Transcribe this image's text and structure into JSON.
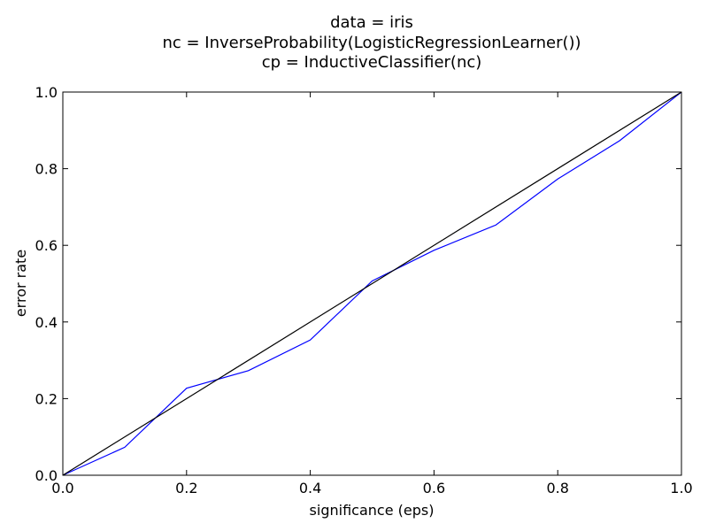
{
  "chart_data": {
    "type": "line",
    "title_lines": [
      "data = iris",
      "nc = InverseProbability(LogisticRegressionLearner())",
      "cp = InductiveClassifier(nc)"
    ],
    "xlabel": "significance (eps)",
    "ylabel": "error rate",
    "xlim": [
      0.0,
      1.0
    ],
    "ylim": [
      0.0,
      1.0
    ],
    "x_ticks": [
      0.0,
      0.2,
      0.4,
      0.6,
      0.8,
      1.0
    ],
    "x_tick_labels": [
      "0.0",
      "0.2",
      "0.4",
      "0.6",
      "0.8",
      "1.0"
    ],
    "y_ticks": [
      0.0,
      0.2,
      0.4,
      0.6,
      0.8,
      1.0
    ],
    "y_tick_labels": [
      "0.0",
      "0.2",
      "0.4",
      "0.6",
      "0.8",
      "1.0"
    ],
    "grid": false,
    "series": [
      {
        "color": "#0000ff",
        "x": [
          0.0,
          0.1,
          0.2,
          0.3,
          0.4,
          0.5,
          0.6,
          0.7,
          0.8,
          0.9,
          1.0
        ],
        "y": [
          0.0,
          0.073,
          0.227,
          0.273,
          0.353,
          0.507,
          0.587,
          0.653,
          0.773,
          0.873,
          1.0
        ]
      },
      {
        "color": "#000000",
        "x": [
          0.0,
          1.0
        ],
        "y": [
          0.0,
          1.0
        ]
      }
    ]
  }
}
